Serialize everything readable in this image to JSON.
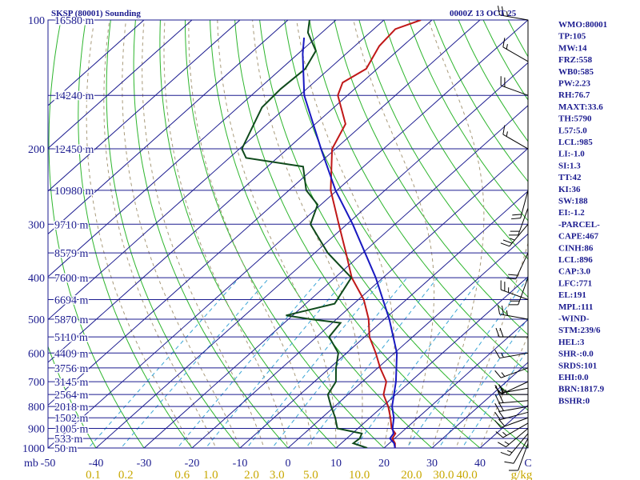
{
  "header": {
    "title": "SKSP (80001) Sounding",
    "valid_time": "0000Z 13 OCT 25"
  },
  "colors": {
    "isobar": "#1b1b8f",
    "isotherm": "#1b1b8f",
    "dry_adiabat": "#2db52d",
    "moist_adiabat": "#a89a7a",
    "mixing_ratio": "#3aa5d6",
    "temperature": "#c01818",
    "dewpoint": "#0f4a1c",
    "parcel": "#1818c0",
    "mixing_ratio_labels": "#c8a800"
  },
  "chart_data": {
    "type": "skew-t",
    "title": "SKSP (80001) Sounding",
    "pressure_range_mb": [
      100,
      1000
    ],
    "temperature_range_c": [
      -50,
      50
    ],
    "pressure_unit_label": "mb",
    "mixing_ratio_unit_label": "g/kg",
    "pressure_levels": [
      100,
      200,
      300,
      400,
      500,
      600,
      700,
      800,
      900,
      1000
    ],
    "temperature_ticks": [
      -50,
      -40,
      -30,
      -20,
      -10,
      0,
      10,
      20,
      30,
      40,
      50
    ],
    "temperature_tick_labels": [
      "-50",
      "-40",
      "-30",
      "-20",
      "-10",
      "0",
      "10",
      "20",
      "30",
      "40",
      "C"
    ],
    "height_labels": [
      {
        "p": 100,
        "label": "16580 m"
      },
      {
        "p": 150,
        "label": "14240 m"
      },
      {
        "p": 200,
        "label": "12450 m"
      },
      {
        "p": 250,
        "label": "10980 m"
      },
      {
        "p": 300,
        "label": "9710 m"
      },
      {
        "p": 350,
        "label": "8579 m"
      },
      {
        "p": 400,
        "label": "7600 m"
      },
      {
        "p": 450,
        "label": "6694 m"
      },
      {
        "p": 500,
        "label": "5870 m"
      },
      {
        "p": 550,
        "label": "5110 m"
      },
      {
        "p": 600,
        "label": "4409 m"
      },
      {
        "p": 650,
        "label": "3756 m"
      },
      {
        "p": 700,
        "label": "3145 m"
      },
      {
        "p": 750,
        "label": "2564 m"
      },
      {
        "p": 800,
        "label": "2018 m"
      },
      {
        "p": 850,
        "label": "1502 m"
      },
      {
        "p": 900,
        "label": "1005 m"
      },
      {
        "p": 950,
        "label": "533 m"
      },
      {
        "p": 1000,
        "label": "50 m"
      }
    ],
    "mixing_ratio_labels": [
      {
        "w": 0.1,
        "label": "0.1"
      },
      {
        "w": 0.2,
        "label": "0.2"
      },
      {
        "w": 0.6,
        "label": "0.6"
      },
      {
        "w": 1.0,
        "label": "1.0"
      },
      {
        "w": 2.0,
        "label": "2.0"
      },
      {
        "w": 3.0,
        "label": "3.0"
      },
      {
        "w": 5.0,
        "label": "5.0"
      },
      {
        "w": 10.0,
        "label": "10.0"
      },
      {
        "w": 20.0,
        "label": "20.0"
      },
      {
        "w": 30.0,
        "label": "30.0"
      },
      {
        "w": 40.0,
        "label": "40.0"
      }
    ],
    "series": [
      {
        "name": "Temperature",
        "points": [
          [
            1000,
            22.3
          ],
          [
            975,
            21.2
          ],
          [
            950,
            19.5
          ],
          [
            925,
            19.0
          ],
          [
            900,
            17.0
          ],
          [
            850,
            14.3
          ],
          [
            800,
            11.2
          ],
          [
            750,
            7.4
          ],
          [
            700,
            5.0
          ],
          [
            650,
            0.5
          ],
          [
            600,
            -3.9
          ],
          [
            550,
            -9.0
          ],
          [
            500,
            -13.3
          ],
          [
            450,
            -18.9
          ],
          [
            400,
            -26.5
          ],
          [
            350,
            -33.5
          ],
          [
            300,
            -41.7
          ],
          [
            250,
            -51.3
          ],
          [
            200,
            -60.7
          ],
          [
            175,
            -63.7
          ],
          [
            150,
            -72.0
          ],
          [
            140,
            -74.0
          ],
          [
            130,
            -72.3
          ],
          [
            115,
            -74.9
          ],
          [
            105,
            -75.5
          ],
          [
            100,
            -72.3
          ]
        ]
      },
      {
        "name": "Dewpoint",
        "points": [
          [
            1000,
            16.5
          ],
          [
            975,
            12.5
          ],
          [
            950,
            12.7
          ],
          [
            925,
            12.0
          ],
          [
            900,
            5.7
          ],
          [
            850,
            2.8
          ],
          [
            800,
            -0.7
          ],
          [
            750,
            -4.2
          ],
          [
            700,
            -5.5
          ],
          [
            650,
            -8.7
          ],
          [
            600,
            -11.7
          ],
          [
            550,
            -17.4
          ],
          [
            510,
            -18.3
          ],
          [
            500,
            -25.5
          ],
          [
            490,
            -31.4
          ],
          [
            460,
            -24.0
          ],
          [
            400,
            -26.6
          ],
          [
            350,
            -37.3
          ],
          [
            300,
            -47.6
          ],
          [
            270,
            -50.7
          ],
          [
            250,
            -56.4
          ],
          [
            220,
            -62.6
          ],
          [
            210,
            -76.5
          ],
          [
            200,
            -79.5
          ],
          [
            160,
            -85.0
          ],
          [
            145,
            -85.4
          ],
          [
            130,
            -85.0
          ],
          [
            118,
            -87.0
          ],
          [
            107,
            -92.9
          ],
          [
            100,
            -95.5
          ]
        ]
      },
      {
        "name": "Parcel",
        "points": [
          [
            1000,
            22.3
          ],
          [
            975,
            21.0
          ],
          [
            950,
            19.0
          ],
          [
            925,
            18.6
          ],
          [
            900,
            17.2
          ],
          [
            850,
            15.0
          ],
          [
            800,
            12.0
          ],
          [
            700,
            7.0
          ],
          [
            600,
            0.5
          ],
          [
            500,
            -9.0
          ],
          [
            400,
            -21.5
          ],
          [
            300,
            -38.8
          ],
          [
            250,
            -50.3
          ],
          [
            200,
            -63.0
          ],
          [
            150,
            -79.0
          ],
          [
            120,
            -89.0
          ],
          [
            110,
            -92.5
          ]
        ]
      }
    ],
    "wind_barbs": [
      {
        "p": 975,
        "dir": 200,
        "spd": 10
      },
      {
        "p": 950,
        "dir": 210,
        "spd": 10
      },
      {
        "p": 925,
        "dir": 220,
        "spd": 15
      },
      {
        "p": 900,
        "dir": 230,
        "spd": 15
      },
      {
        "p": 875,
        "dir": 240,
        "spd": 15
      },
      {
        "p": 850,
        "dir": 250,
        "spd": 20
      },
      {
        "p": 825,
        "dir": 255,
        "spd": 20
      },
      {
        "p": 800,
        "dir": 260,
        "spd": 20
      },
      {
        "p": 775,
        "dir": 265,
        "spd": 20
      },
      {
        "p": 750,
        "dir": 270,
        "spd": 25
      },
      {
        "p": 725,
        "dir": 260,
        "spd": 20
      },
      {
        "p": 700,
        "dir": 245,
        "spd": 20
      },
      {
        "p": 650,
        "dir": 250,
        "spd": 15
      },
      {
        "p": 600,
        "dir": 260,
        "spd": 15
      },
      {
        "p": 550,
        "dir": 270,
        "spd": 20
      },
      {
        "p": 500,
        "dir": 280,
        "spd": 25
      },
      {
        "p": 450,
        "dir": 290,
        "spd": 25
      },
      {
        "p": 400,
        "dir": 200,
        "spd": 20
      },
      {
        "p": 350,
        "dir": 205,
        "spd": 20
      },
      {
        "p": 300,
        "dir": 220,
        "spd": 25
      },
      {
        "p": 275,
        "dir": 200,
        "spd": 20
      },
      {
        "p": 250,
        "dir": 195,
        "spd": 20
      },
      {
        "p": 200,
        "dir": 300,
        "spd": 15
      },
      {
        "p": 150,
        "dir": 290,
        "spd": 20
      },
      {
        "p": 125,
        "dir": 300,
        "spd": 15
      },
      {
        "p": 100,
        "dir": 280,
        "spd": 25
      }
    ]
  },
  "indices": [
    "WMO:80001",
    "TP:105",
    "MW:14",
    "FRZ:558",
    "WB0:585",
    "PW:2.23",
    "RH:76.7",
    "MAXT:33.6",
    "TH:5790",
    "L57:5.0",
    "LCL:985",
    "LI:-1.0",
    "SI:1.3",
    "TT:42",
    "KI:36",
    "SW:188",
    "EI:-1.2",
    "-PARCEL-",
    "CAPE:467",
    "CINH:86",
    "LCL:896",
    "CAP:3.0",
    "LFC:771",
    "EL:191",
    "MPL:111",
    "-WIND-",
    "STM:239/6",
    "HEL:3",
    "SHR-:0.0",
    "SRDS:101",
    "EHI:0.0",
    "BRN:1817.9",
    "BSHR:0"
  ]
}
